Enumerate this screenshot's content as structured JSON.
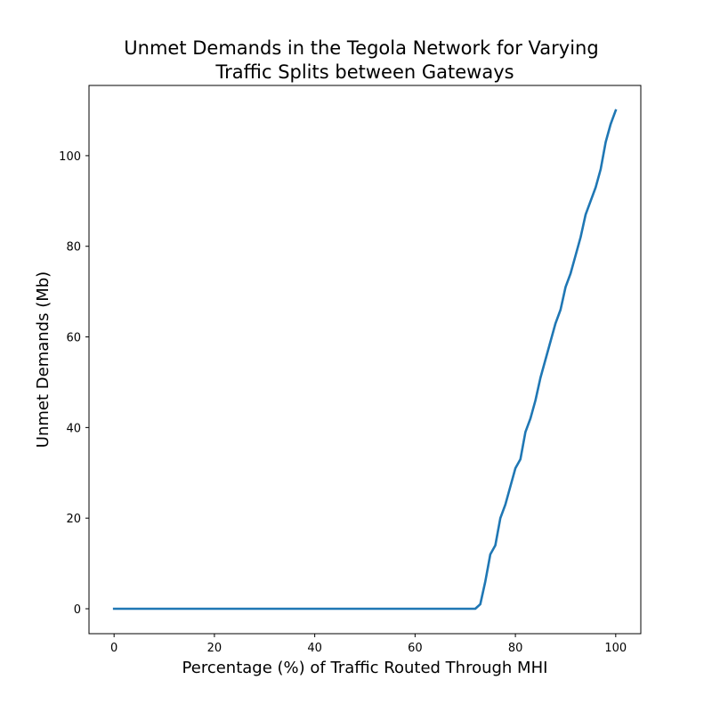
{
  "chart_data": {
    "type": "line",
    "title_lines": [
      "Unmet Demands in the Tegola Network for Varying",
      "Traffic Splits between Gateways"
    ],
    "xlabel": "Percentage (%) of Traffic Routed Through MHI",
    "ylabel": "Unmet Demands (Mb)",
    "xlim": [
      -5,
      105
    ],
    "ylim": [
      -5.5,
      115.5
    ],
    "xticks": [
      0,
      20,
      40,
      60,
      80,
      100
    ],
    "yticks": [
      0,
      20,
      40,
      60,
      80,
      100
    ],
    "grid": false,
    "series": [
      {
        "color": "#1f77b4",
        "x": [
          0,
          10,
          20,
          30,
          40,
          50,
          60,
          70,
          72,
          73,
          74,
          75,
          76,
          77,
          78,
          79,
          80,
          81,
          82,
          83,
          84,
          85,
          86,
          87,
          88,
          89,
          90,
          91,
          92,
          93,
          94,
          95,
          96,
          97,
          98,
          99,
          100
        ],
        "y": [
          0,
          0,
          0,
          0,
          0,
          0,
          0,
          0,
          0,
          1,
          6,
          12,
          14,
          20,
          23,
          27,
          31,
          33,
          39,
          42,
          46,
          51,
          55,
          59,
          63,
          66,
          71,
          74,
          78,
          82,
          87,
          90,
          93,
          97,
          103,
          107,
          110
        ]
      }
    ]
  }
}
